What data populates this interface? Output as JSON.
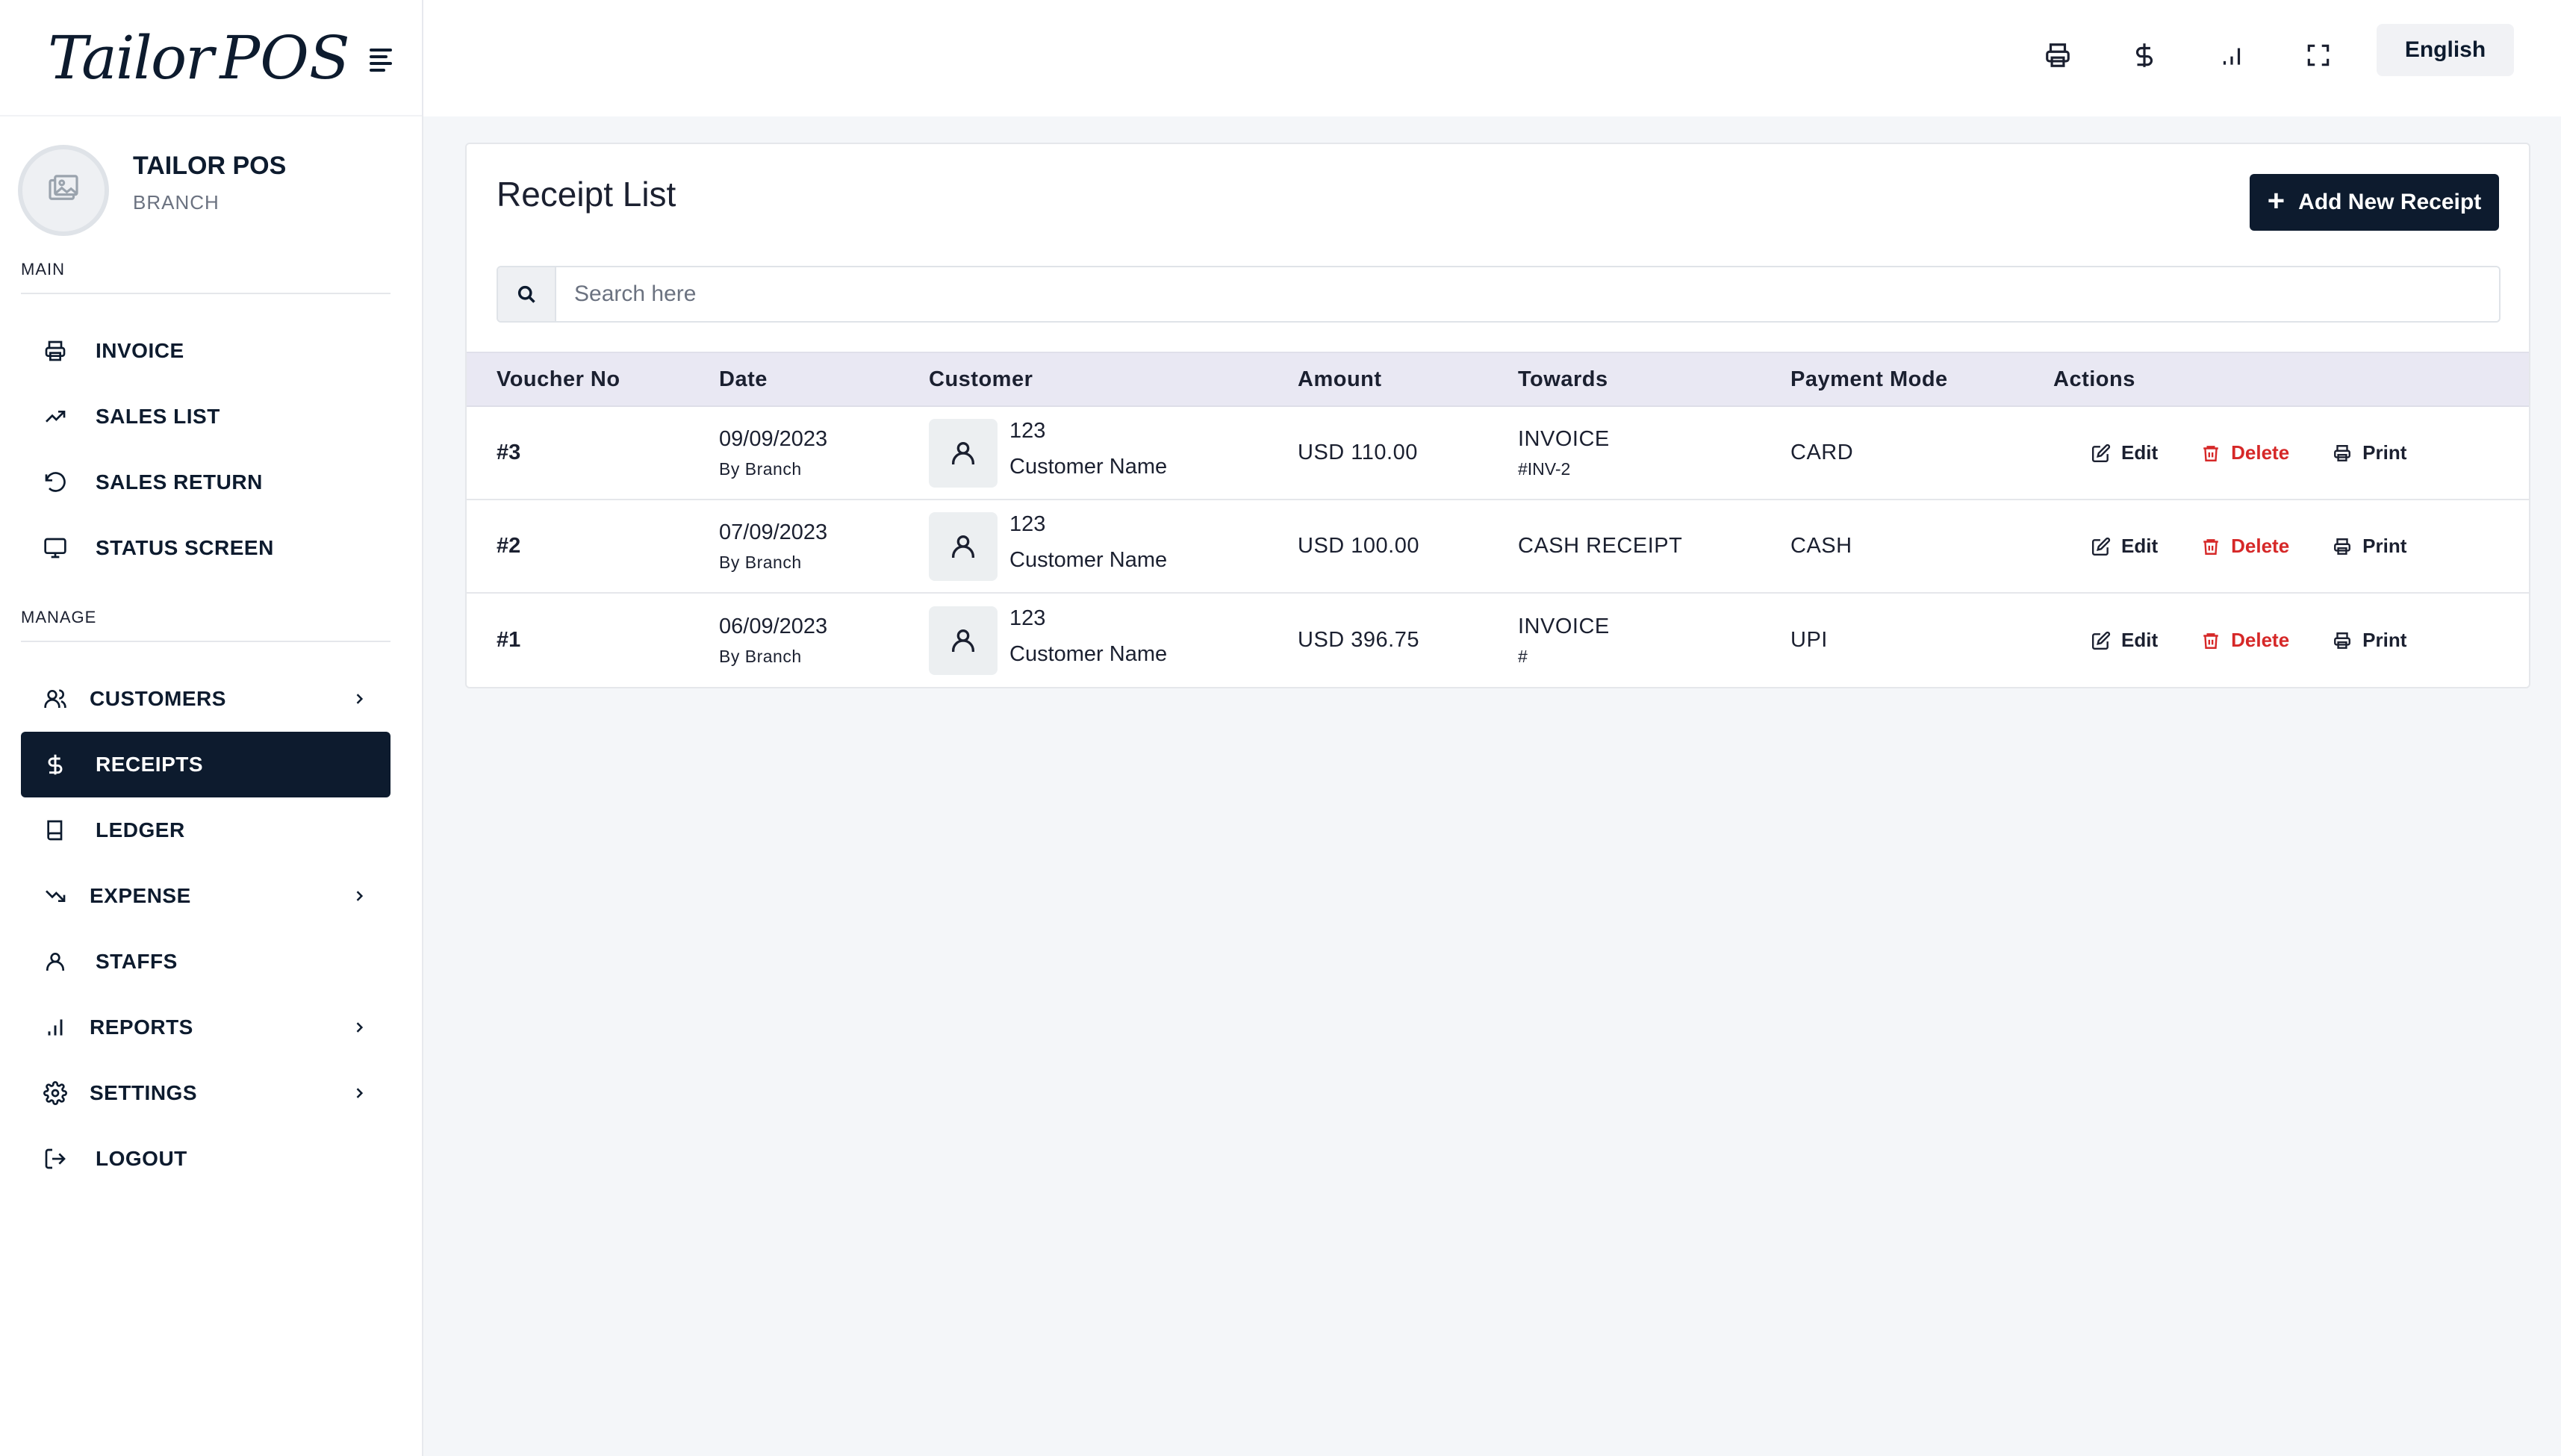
{
  "brand": {
    "logo_main": "Tailor",
    "logo_suffix": "POS"
  },
  "profile": {
    "name": "TAILOR POS",
    "role": "BRANCH"
  },
  "sidebar": {
    "main_label": "MAIN",
    "manage_label": "MANAGE",
    "main_items": [
      {
        "label": "INVOICE",
        "icon": "printer-icon"
      },
      {
        "label": "SALES LIST",
        "icon": "trend-up-icon"
      },
      {
        "label": "SALES RETURN",
        "icon": "undo-icon"
      },
      {
        "label": "STATUS SCREEN",
        "icon": "monitor-icon"
      }
    ],
    "manage_items": [
      {
        "label": "CUSTOMERS",
        "icon": "users-icon",
        "has_submenu": true
      },
      {
        "label": "RECEIPTS",
        "icon": "dollar-icon",
        "active": true
      },
      {
        "label": "LEDGER",
        "icon": "book-icon"
      },
      {
        "label": "EXPENSE",
        "icon": "trend-down-icon",
        "has_submenu": true
      },
      {
        "label": "STAFFS",
        "icon": "user-icon"
      },
      {
        "label": "REPORTS",
        "icon": "bar-chart-icon",
        "has_submenu": true
      },
      {
        "label": "SETTINGS",
        "icon": "gear-icon",
        "has_submenu": true
      },
      {
        "label": "LOGOUT",
        "icon": "logout-icon"
      }
    ]
  },
  "topbar": {
    "language": "English",
    "icons": [
      "printer-icon",
      "dollar-icon",
      "bar-chart-icon",
      "fullscreen-icon"
    ]
  },
  "page": {
    "title": "Receipt List",
    "add_button": "Add New Receipt",
    "search_placeholder": "Search here"
  },
  "table": {
    "headers": [
      "Voucher No",
      "Date",
      "Customer",
      "Amount",
      "Towards",
      "Payment Mode",
      "Actions"
    ],
    "actions": {
      "edit": "Edit",
      "delete": "Delete",
      "print": "Print"
    },
    "rows": [
      {
        "voucher": "#3",
        "date": "09/09/2023",
        "by": "By Branch",
        "customer_id": "123",
        "customer_name": "Customer Name",
        "amount": "USD 110.00",
        "towards": "INVOICE",
        "towards_ref": "#INV-2",
        "mode": "CARD"
      },
      {
        "voucher": "#2",
        "date": "07/09/2023",
        "by": "By Branch",
        "customer_id": "123",
        "customer_name": "Customer Name",
        "amount": "USD 100.00",
        "towards": "CASH RECEIPT",
        "towards_ref": "",
        "mode": "CASH"
      },
      {
        "voucher": "#1",
        "date": "06/09/2023",
        "by": "By Branch",
        "customer_id": "123",
        "customer_name": "Customer Name",
        "amount": "USD 396.75",
        "towards": "INVOICE",
        "towards_ref": "#",
        "mode": "UPI"
      }
    ]
  },
  "colors": {
    "primary": "#0d1b2e",
    "danger": "#d62828",
    "header_bg": "#e9e8f3",
    "page_bg": "#f4f6f9"
  }
}
